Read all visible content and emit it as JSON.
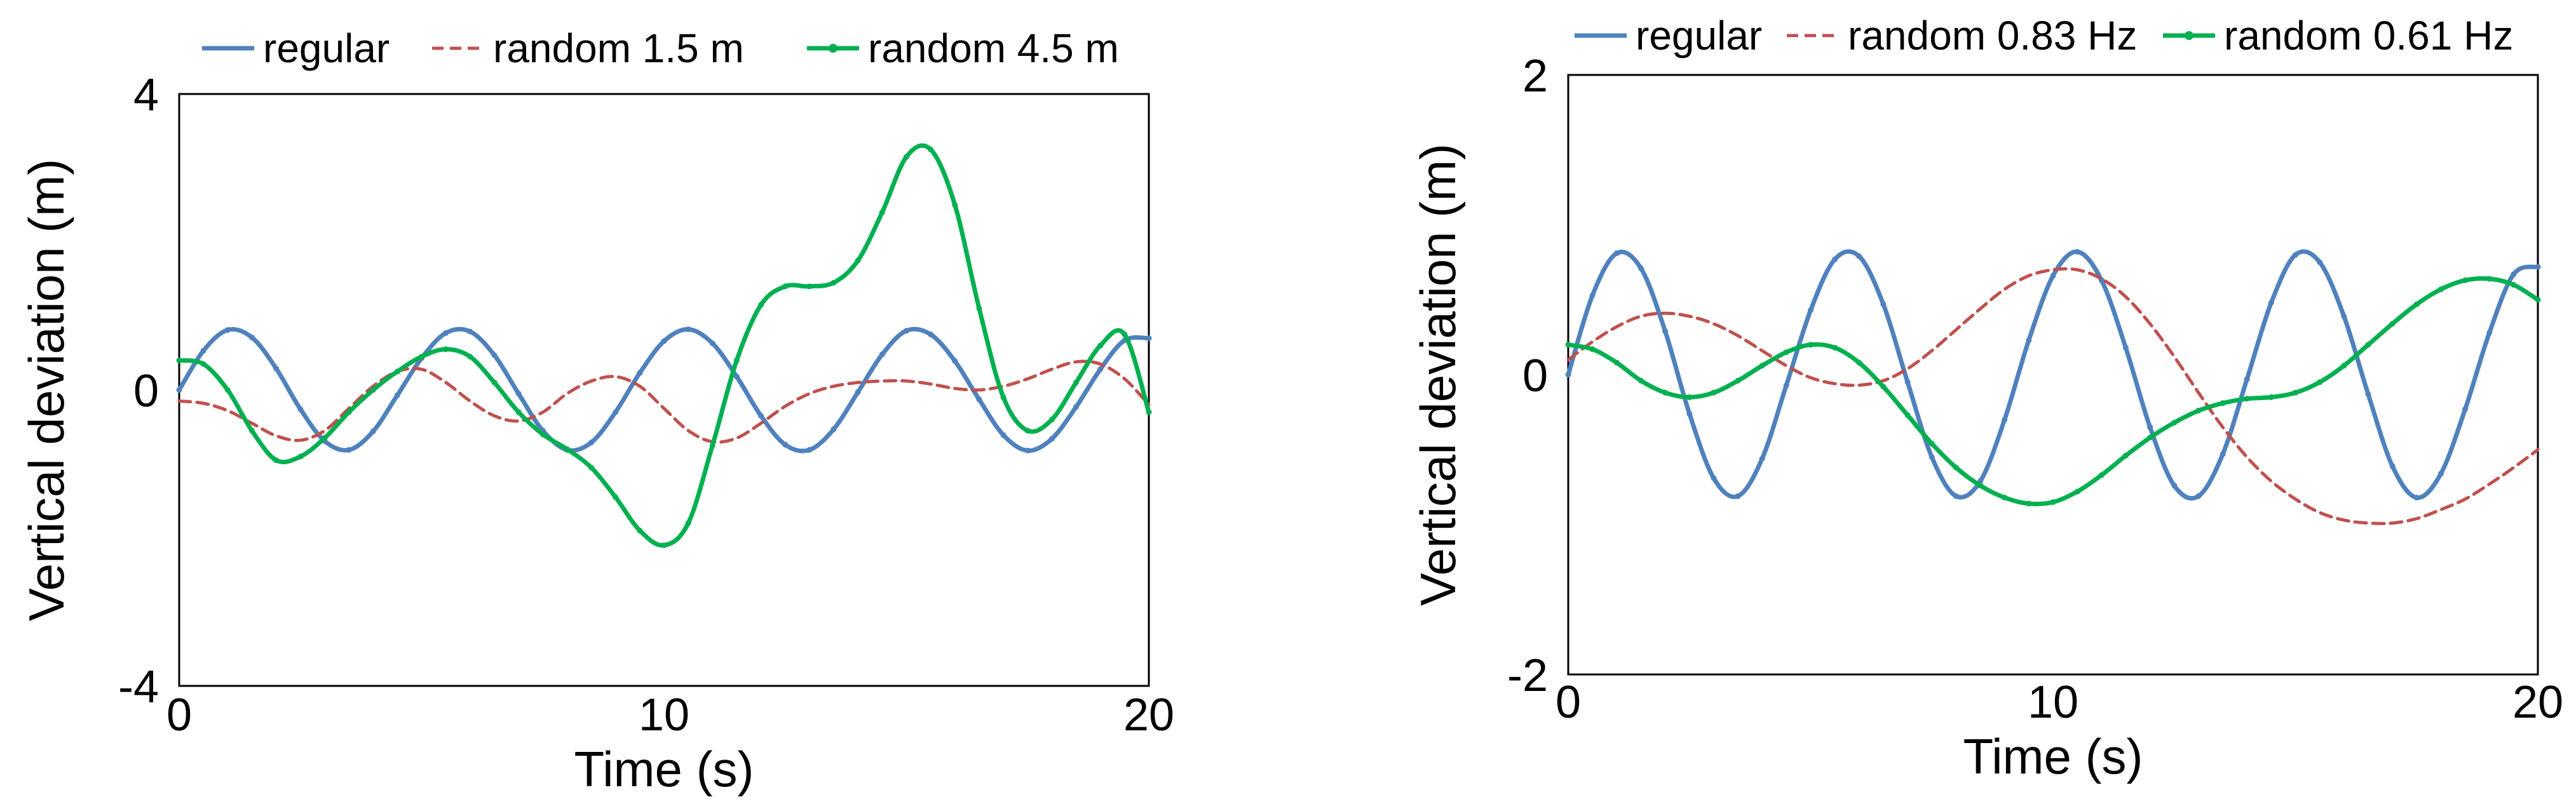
{
  "chart_data": [
    {
      "type": "line",
      "title": "",
      "xlabel": "Time (s)",
      "ylabel": "Vertical deviation  (m)",
      "xlim": [
        0,
        20
      ],
      "ylim": [
        -4,
        4
      ],
      "x_ticks": [
        0,
        10,
        20
      ],
      "y_ticks": [
        -4,
        0,
        4
      ],
      "x_tick_labels": [
        "0",
        "10",
        "20"
      ],
      "y_tick_labels": [
        "-4",
        "0",
        "4"
      ],
      "legend_position": "top",
      "series": [
        {
          "name": "regular",
          "color": "#4f81bd",
          "style": "solid-marked",
          "x": [
            0,
            0.5,
            1,
            1.5,
            2,
            2.5,
            3,
            3.5,
            4,
            4.5,
            5,
            5.5,
            6,
            6.5,
            7,
            7.5,
            8,
            8.5,
            9,
            9.5,
            10,
            10.5,
            11,
            11.5,
            12,
            12.5,
            13,
            13.5,
            14,
            14.5,
            15,
            15.5,
            16,
            16.5,
            17,
            17.5,
            18,
            18.5,
            19,
            19.5,
            20
          ],
          "y": [
            0.0,
            0.53,
            0.81,
            0.71,
            0.29,
            -0.26,
            -0.69,
            -0.81,
            -0.56,
            -0.07,
            0.43,
            0.77,
            0.79,
            0.47,
            -0.05,
            -0.55,
            -0.81,
            -0.71,
            -0.3,
            0.23,
            0.66,
            0.82,
            0.63,
            0.18,
            -0.35,
            -0.74,
            -0.81,
            -0.53,
            -0.03,
            0.48,
            0.8,
            0.75,
            0.39,
            -0.13,
            -0.61,
            -0.82,
            -0.66,
            -0.23,
            0.28,
            0.67,
            0.7
          ]
        },
        {
          "name": "random 1.5 m",
          "color": "#c0504d",
          "style": "dashed",
          "x": [
            0,
            0.5,
            1,
            1.5,
            2,
            2.5,
            3,
            3.5,
            4,
            4.5,
            5,
            5.5,
            6,
            6.5,
            7,
            7.5,
            8,
            8.5,
            9,
            9.5,
            10,
            10.5,
            11,
            11.5,
            12,
            12.5,
            13,
            13.5,
            14,
            14.5,
            15,
            15.5,
            16,
            16.5,
            17,
            17.5,
            18,
            18.5,
            19,
            19.5,
            20
          ],
          "y": [
            -0.15,
            -0.18,
            -0.28,
            -0.45,
            -0.62,
            -0.68,
            -0.55,
            -0.25,
            0.05,
            0.25,
            0.28,
            0.1,
            -0.15,
            -0.35,
            -0.42,
            -0.3,
            -0.05,
            0.12,
            0.18,
            0.05,
            -0.25,
            -0.55,
            -0.7,
            -0.65,
            -0.45,
            -0.22,
            -0.05,
            0.05,
            0.1,
            0.12,
            0.12,
            0.08,
            0.02,
            0.0,
            0.05,
            0.15,
            0.28,
            0.38,
            0.35,
            0.15,
            -0.2
          ]
        },
        {
          "name": "random 4.5 m",
          "color": "#00b050",
          "style": "solid-marked",
          "x": [
            0,
            0.5,
            1,
            1.5,
            2,
            2.5,
            3,
            3.5,
            4,
            4.5,
            5,
            5.5,
            6,
            6.5,
            7,
            7.5,
            8,
            8.5,
            9,
            9.5,
            10,
            10.5,
            11,
            11.5,
            12,
            12.5,
            13,
            13.5,
            14,
            14.5,
            15,
            15.5,
            16,
            16.5,
            17,
            17.5,
            18,
            18.5,
            19,
            19.5,
            20
          ],
          "y": [
            0.4,
            0.35,
            0.0,
            -0.55,
            -0.95,
            -0.9,
            -0.65,
            -0.3,
            0.0,
            0.25,
            0.45,
            0.55,
            0.45,
            0.1,
            -0.3,
            -0.6,
            -0.8,
            -1.05,
            -1.45,
            -1.9,
            -2.1,
            -1.8,
            -0.75,
            0.4,
            1.15,
            1.4,
            1.4,
            1.45,
            1.75,
            2.4,
            3.15,
            3.25,
            2.5,
            1.1,
            -0.1,
            -0.55,
            -0.4,
            0.1,
            0.6,
            0.75,
            -0.3
          ]
        }
      ]
    },
    {
      "type": "line",
      "title": "",
      "xlabel": "Time (s)",
      "ylabel": "Vertical deviation  (m)",
      "xlim": [
        0,
        20
      ],
      "ylim": [
        -2,
        2
      ],
      "x_ticks": [
        0,
        10,
        20
      ],
      "y_ticks": [
        -2,
        0,
        2
      ],
      "x_tick_labels": [
        "0",
        "10",
        "20"
      ],
      "y_tick_labels": [
        "-2",
        "0",
        "2"
      ],
      "legend_position": "top",
      "series": [
        {
          "name": "regular",
          "color": "#4f81bd",
          "style": "solid-marked",
          "x": [
            0,
            0.5,
            1,
            1.5,
            2,
            2.5,
            3,
            3.5,
            4,
            4.5,
            5,
            5.5,
            6,
            6.5,
            7,
            7.5,
            8,
            8.5,
            9,
            9.5,
            10,
            10.5,
            11,
            11.5,
            12,
            12.5,
            13,
            13.5,
            14,
            14.5,
            15,
            15.5,
            16,
            16.5,
            17,
            17.5,
            18,
            18.5,
            19,
            19.5,
            20
          ],
          "y": [
            0.0,
            0.53,
            0.81,
            0.71,
            0.29,
            -0.26,
            -0.69,
            -0.81,
            -0.56,
            -0.07,
            0.43,
            0.77,
            0.79,
            0.47,
            -0.05,
            -0.55,
            -0.81,
            -0.71,
            -0.3,
            0.23,
            0.66,
            0.82,
            0.63,
            0.18,
            -0.35,
            -0.74,
            -0.81,
            -0.53,
            -0.03,
            0.48,
            0.8,
            0.75,
            0.39,
            -0.13,
            -0.61,
            -0.82,
            -0.66,
            -0.23,
            0.28,
            0.67,
            0.72
          ]
        },
        {
          "name": "random 0.83 Hz",
          "color": "#c0504d",
          "style": "dashed",
          "x": [
            0,
            0.5,
            1,
            1.5,
            2,
            2.5,
            3,
            3.5,
            4,
            4.5,
            5,
            5.5,
            6,
            6.5,
            7,
            7.5,
            8,
            8.5,
            9,
            9.5,
            10,
            10.5,
            11,
            11.5,
            12,
            12.5,
            13,
            13.5,
            14,
            14.5,
            15,
            15.5,
            16,
            16.5,
            17,
            17.5,
            18,
            18.5,
            19,
            19.5,
            20
          ],
          "y": [
            0.1,
            0.22,
            0.32,
            0.39,
            0.41,
            0.39,
            0.34,
            0.26,
            0.16,
            0.06,
            -0.02,
            -0.06,
            -0.07,
            -0.04,
            0.04,
            0.16,
            0.3,
            0.44,
            0.57,
            0.66,
            0.7,
            0.7,
            0.64,
            0.52,
            0.34,
            0.12,
            -0.12,
            -0.35,
            -0.55,
            -0.71,
            -0.83,
            -0.92,
            -0.97,
            -0.99,
            -0.99,
            -0.96,
            -0.9,
            -0.83,
            -0.73,
            -0.62,
            -0.5
          ]
        },
        {
          "name": "random 0.61 Hz",
          "color": "#00b050",
          "style": "solid-marked",
          "x": [
            0,
            0.5,
            1,
            1.5,
            2,
            2.5,
            3,
            3.5,
            4,
            4.5,
            5,
            5.5,
            6,
            6.5,
            7,
            7.5,
            8,
            8.5,
            9,
            9.5,
            10,
            10.5,
            11,
            11.5,
            12,
            12.5,
            13,
            13.5,
            14,
            14.5,
            15,
            15.5,
            16,
            16.5,
            17,
            17.5,
            18,
            18.5,
            19,
            19.5,
            20
          ],
          "y": [
            0.2,
            0.17,
            0.08,
            -0.04,
            -0.12,
            -0.15,
            -0.12,
            -0.04,
            0.06,
            0.15,
            0.2,
            0.18,
            0.08,
            -0.08,
            -0.27,
            -0.46,
            -0.62,
            -0.74,
            -0.82,
            -0.86,
            -0.85,
            -0.78,
            -0.67,
            -0.54,
            -0.42,
            -0.32,
            -0.24,
            -0.19,
            -0.16,
            -0.15,
            -0.12,
            -0.05,
            0.06,
            0.2,
            0.34,
            0.47,
            0.57,
            0.63,
            0.64,
            0.6,
            0.5
          ]
        }
      ]
    }
  ]
}
